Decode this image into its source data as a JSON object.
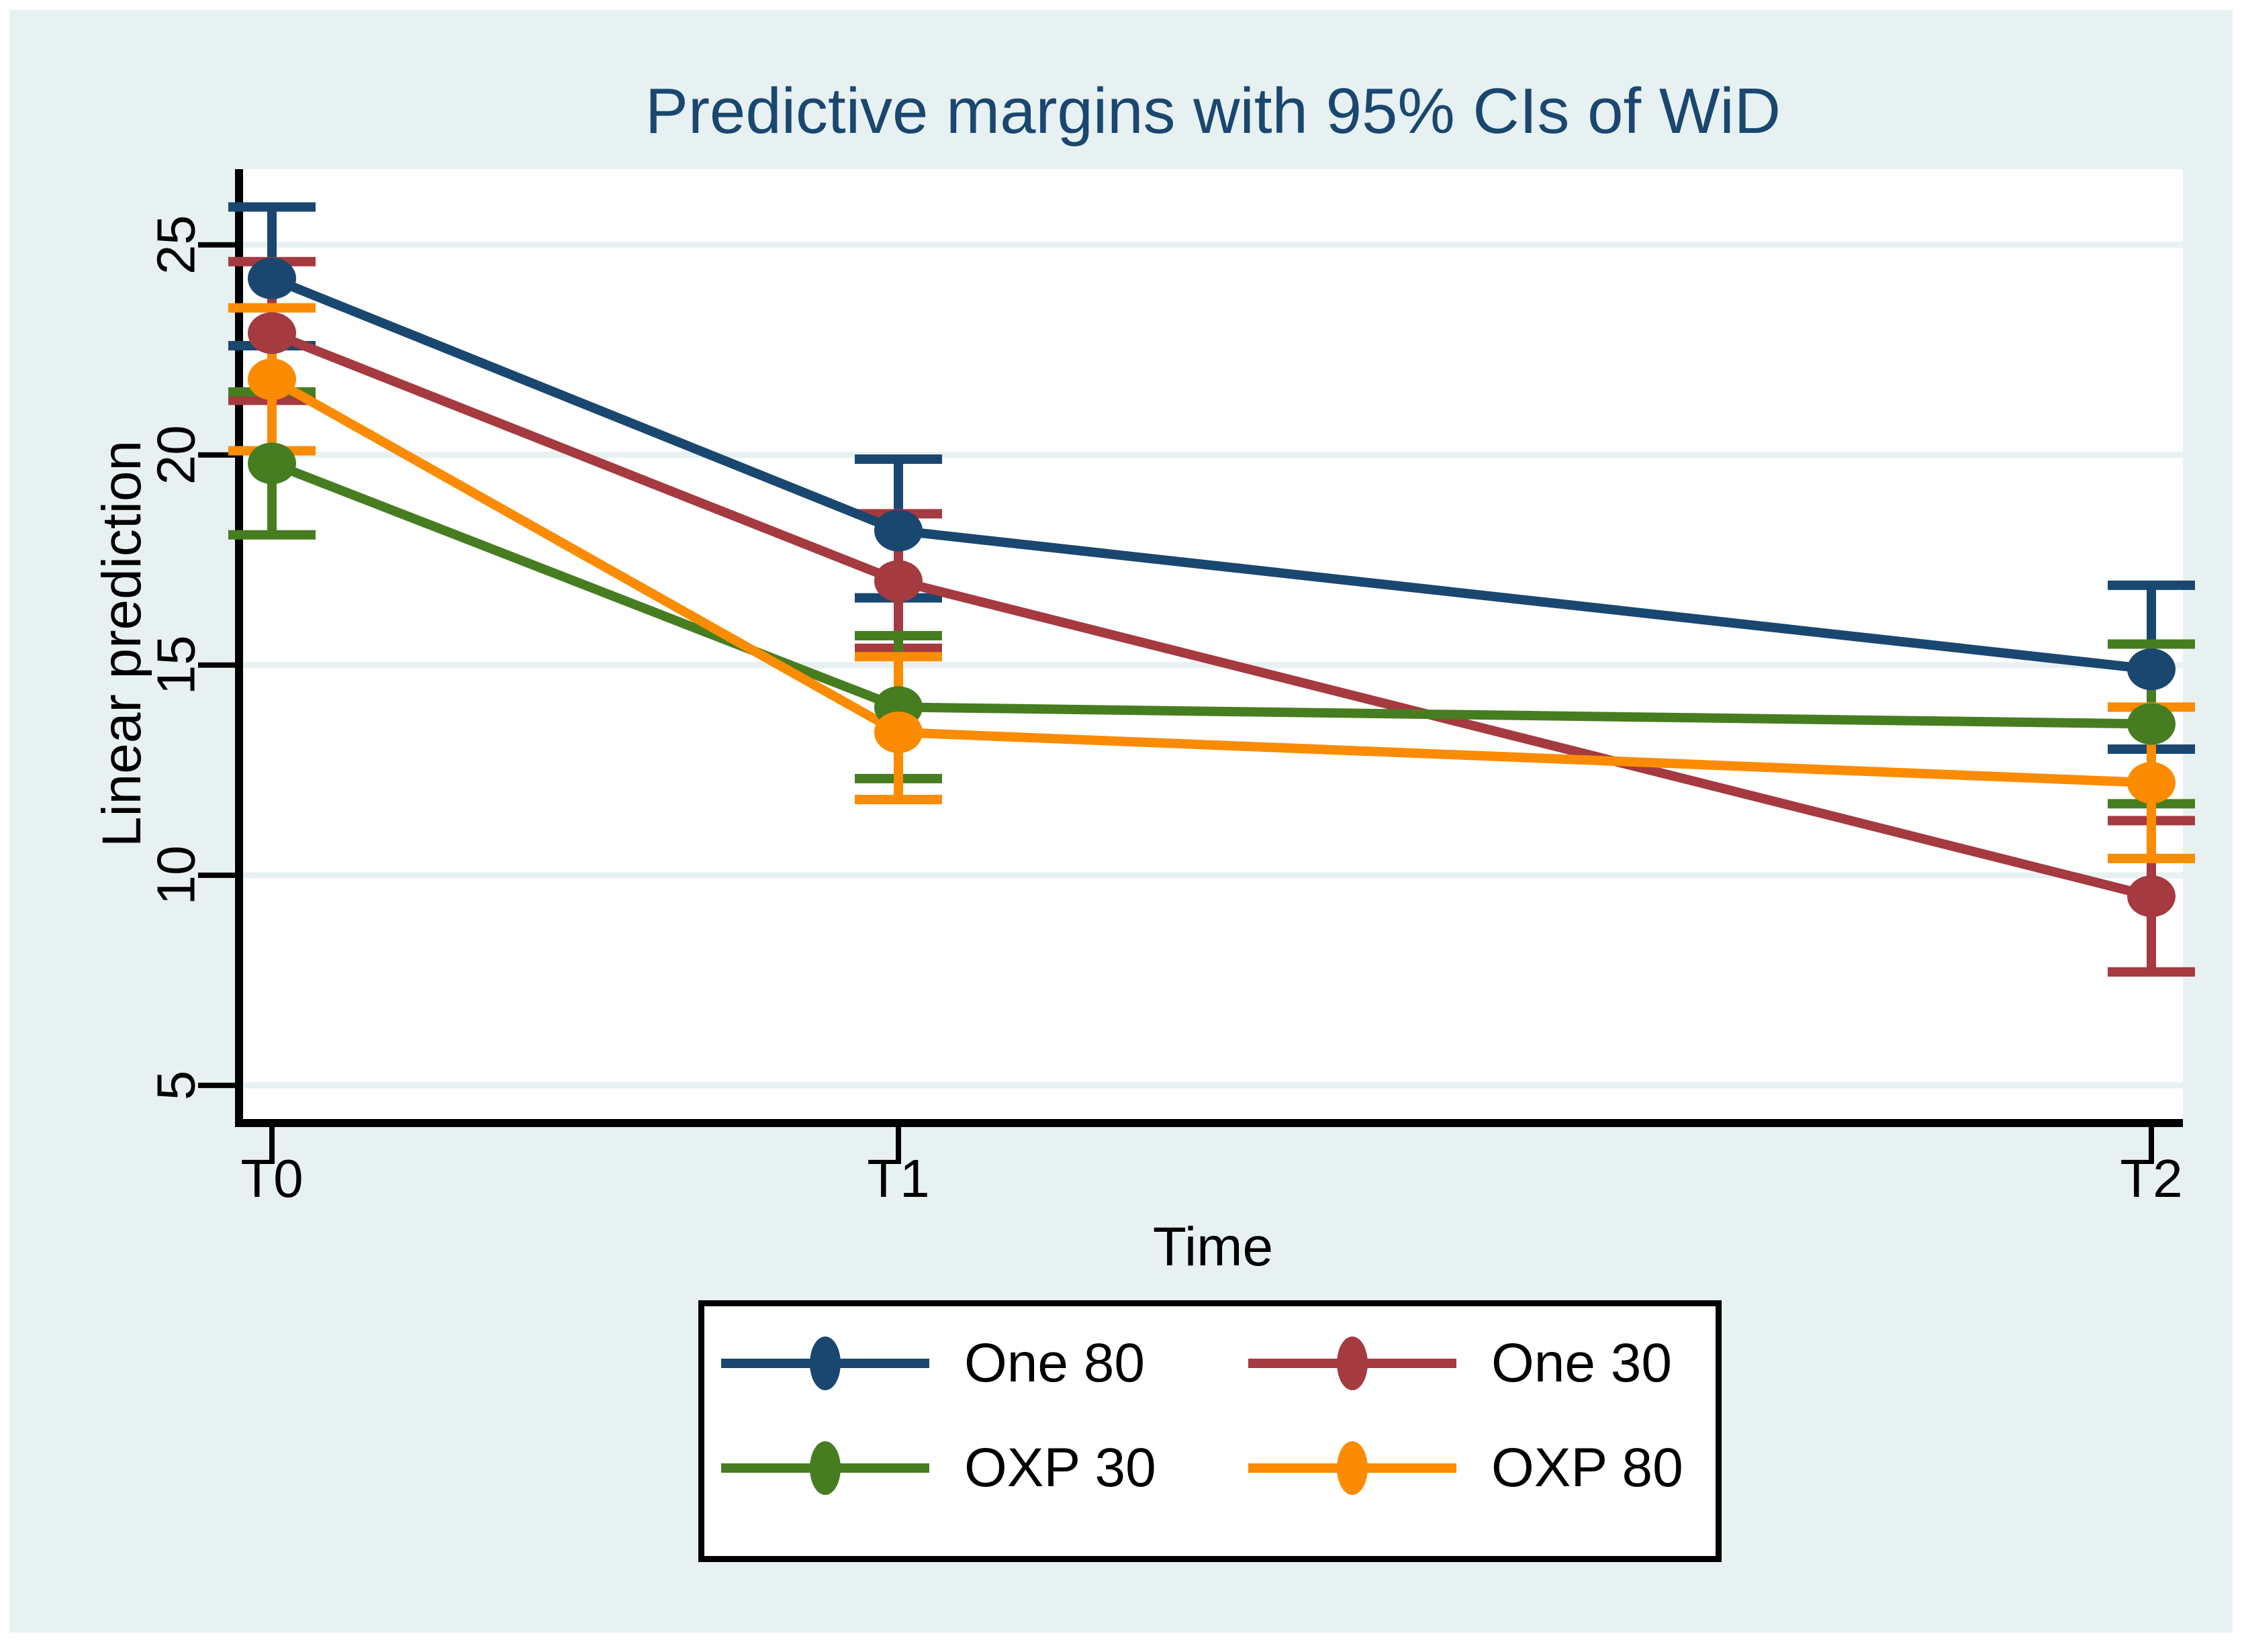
{
  "chart_data": {
    "type": "line",
    "title": "Predictive margins with 95% CIs of WiD",
    "xlabel": "Time",
    "ylabel": "Linear prediction",
    "x_categories": [
      "T0",
      "T1",
      "T2"
    ],
    "x_positions": [
      0,
      1,
      3
    ],
    "y_ticks": [
      5,
      10,
      15,
      20,
      25
    ],
    "ylim": [
      4.2,
      26.8
    ],
    "grid": "on",
    "legend_position": "bottom-box",
    "series": [
      {
        "name": "One 80",
        "color": "#1a476f",
        "values": [
          24.2,
          18.2,
          14.9
        ],
        "ci_low": [
          22.6,
          16.6,
          13.0
        ],
        "ci_high": [
          25.9,
          19.9,
          16.9
        ]
      },
      {
        "name": "One 30",
        "color": "#a53a40",
        "values": [
          22.9,
          17.0,
          9.5
        ],
        "ci_low": [
          21.3,
          15.4,
          7.7
        ],
        "ci_high": [
          24.6,
          18.6,
          11.3
        ]
      },
      {
        "name": "OXP 30",
        "color": "#477d21",
        "values": [
          19.8,
          14.0,
          13.6
        ],
        "ci_low": [
          18.1,
          12.3,
          11.7
        ],
        "ci_high": [
          21.5,
          15.7,
          15.5
        ]
      },
      {
        "name": "OXP 80",
        "color": "#fb8b00",
        "values": [
          21.8,
          13.4,
          12.2
        ],
        "ci_low": [
          20.1,
          11.8,
          10.4
        ],
        "ci_high": [
          23.5,
          15.2,
          14.0
        ]
      }
    ],
    "colors": {
      "background": "#e7f1f1",
      "plot_background": "#ffffff",
      "gridline": "#e7f1f1",
      "axis": "#000000",
      "title": "#1a476f"
    }
  }
}
